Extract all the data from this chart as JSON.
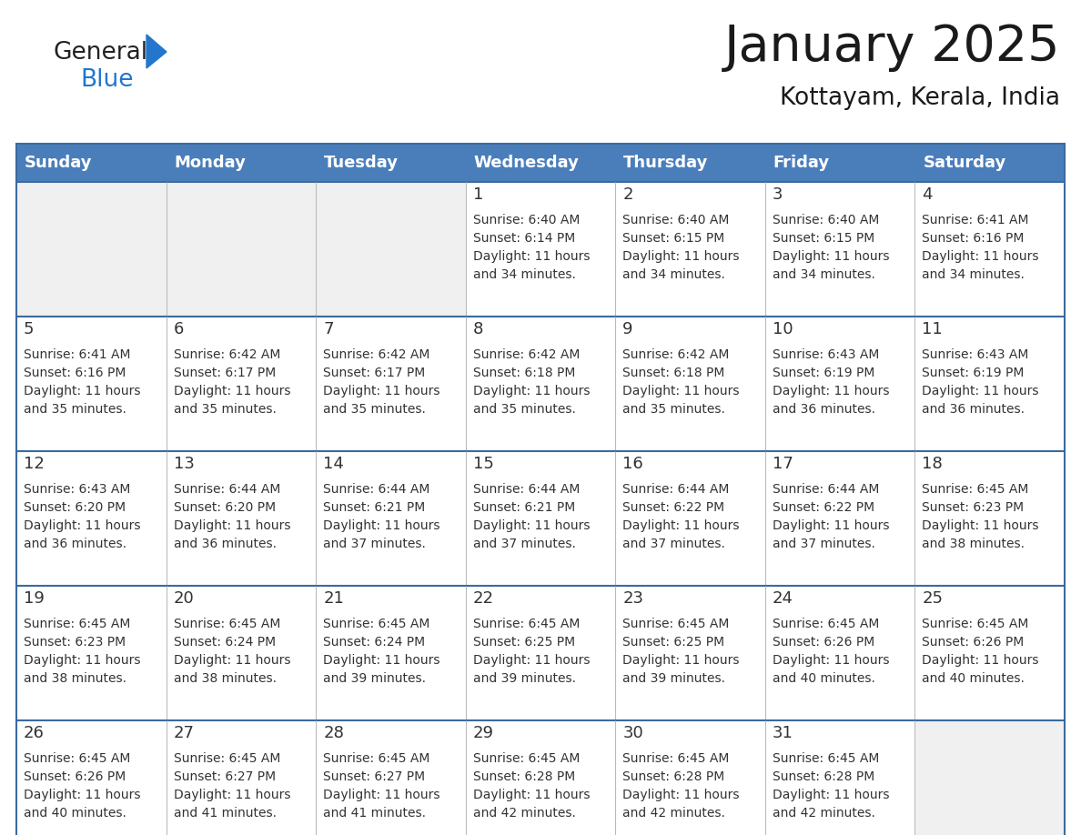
{
  "title": "January 2025",
  "subtitle": "Kottayam, Kerala, India",
  "header_bg": "#4a7ebb",
  "header_text_color": "#FFFFFF",
  "cell_bg_gray": "#f0f0f0",
  "cell_bg_white": "#FFFFFF",
  "border_color": "#3a6aa0",
  "row_border_color": "#3a6aa0",
  "text_color": "#333333",
  "days_of_week": [
    "Sunday",
    "Monday",
    "Tuesday",
    "Wednesday",
    "Thursday",
    "Friday",
    "Saturday"
  ],
  "calendar_data": [
    [
      {
        "day": "",
        "sunrise": "",
        "sunset": "",
        "daylight": ""
      },
      {
        "day": "",
        "sunrise": "",
        "sunset": "",
        "daylight": ""
      },
      {
        "day": "",
        "sunrise": "",
        "sunset": "",
        "daylight": ""
      },
      {
        "day": "1",
        "sunrise": "Sunrise: 6:40 AM",
        "sunset": "Sunset: 6:14 PM",
        "daylight": "Daylight: 11 hours and 34 minutes."
      },
      {
        "day": "2",
        "sunrise": "Sunrise: 6:40 AM",
        "sunset": "Sunset: 6:15 PM",
        "daylight": "Daylight: 11 hours and 34 minutes."
      },
      {
        "day": "3",
        "sunrise": "Sunrise: 6:40 AM",
        "sunset": "Sunset: 6:15 PM",
        "daylight": "Daylight: 11 hours and 34 minutes."
      },
      {
        "day": "4",
        "sunrise": "Sunrise: 6:41 AM",
        "sunset": "Sunset: 6:16 PM",
        "daylight": "Daylight: 11 hours and 34 minutes."
      }
    ],
    [
      {
        "day": "5",
        "sunrise": "Sunrise: 6:41 AM",
        "sunset": "Sunset: 6:16 PM",
        "daylight": "Daylight: 11 hours and 35 minutes."
      },
      {
        "day": "6",
        "sunrise": "Sunrise: 6:42 AM",
        "sunset": "Sunset: 6:17 PM",
        "daylight": "Daylight: 11 hours and 35 minutes."
      },
      {
        "day": "7",
        "sunrise": "Sunrise: 6:42 AM",
        "sunset": "Sunset: 6:17 PM",
        "daylight": "Daylight: 11 hours and 35 minutes."
      },
      {
        "day": "8",
        "sunrise": "Sunrise: 6:42 AM",
        "sunset": "Sunset: 6:18 PM",
        "daylight": "Daylight: 11 hours and 35 minutes."
      },
      {
        "day": "9",
        "sunrise": "Sunrise: 6:42 AM",
        "sunset": "Sunset: 6:18 PM",
        "daylight": "Daylight: 11 hours and 35 minutes."
      },
      {
        "day": "10",
        "sunrise": "Sunrise: 6:43 AM",
        "sunset": "Sunset: 6:19 PM",
        "daylight": "Daylight: 11 hours and 36 minutes."
      },
      {
        "day": "11",
        "sunrise": "Sunrise: 6:43 AM",
        "sunset": "Sunset: 6:19 PM",
        "daylight": "Daylight: 11 hours and 36 minutes."
      }
    ],
    [
      {
        "day": "12",
        "sunrise": "Sunrise: 6:43 AM",
        "sunset": "Sunset: 6:20 PM",
        "daylight": "Daylight: 11 hours and 36 minutes."
      },
      {
        "day": "13",
        "sunrise": "Sunrise: 6:44 AM",
        "sunset": "Sunset: 6:20 PM",
        "daylight": "Daylight: 11 hours and 36 minutes."
      },
      {
        "day": "14",
        "sunrise": "Sunrise: 6:44 AM",
        "sunset": "Sunset: 6:21 PM",
        "daylight": "Daylight: 11 hours and 37 minutes."
      },
      {
        "day": "15",
        "sunrise": "Sunrise: 6:44 AM",
        "sunset": "Sunset: 6:21 PM",
        "daylight": "Daylight: 11 hours and 37 minutes."
      },
      {
        "day": "16",
        "sunrise": "Sunrise: 6:44 AM",
        "sunset": "Sunset: 6:22 PM",
        "daylight": "Daylight: 11 hours and 37 minutes."
      },
      {
        "day": "17",
        "sunrise": "Sunrise: 6:44 AM",
        "sunset": "Sunset: 6:22 PM",
        "daylight": "Daylight: 11 hours and 37 minutes."
      },
      {
        "day": "18",
        "sunrise": "Sunrise: 6:45 AM",
        "sunset": "Sunset: 6:23 PM",
        "daylight": "Daylight: 11 hours and 38 minutes."
      }
    ],
    [
      {
        "day": "19",
        "sunrise": "Sunrise: 6:45 AM",
        "sunset": "Sunset: 6:23 PM",
        "daylight": "Daylight: 11 hours and 38 minutes."
      },
      {
        "day": "20",
        "sunrise": "Sunrise: 6:45 AM",
        "sunset": "Sunset: 6:24 PM",
        "daylight": "Daylight: 11 hours and 38 minutes."
      },
      {
        "day": "21",
        "sunrise": "Sunrise: 6:45 AM",
        "sunset": "Sunset: 6:24 PM",
        "daylight": "Daylight: 11 hours and 39 minutes."
      },
      {
        "day": "22",
        "sunrise": "Sunrise: 6:45 AM",
        "sunset": "Sunset: 6:25 PM",
        "daylight": "Daylight: 11 hours and 39 minutes."
      },
      {
        "day": "23",
        "sunrise": "Sunrise: 6:45 AM",
        "sunset": "Sunset: 6:25 PM",
        "daylight": "Daylight: 11 hours and 39 minutes."
      },
      {
        "day": "24",
        "sunrise": "Sunrise: 6:45 AM",
        "sunset": "Sunset: 6:26 PM",
        "daylight": "Daylight: 11 hours and 40 minutes."
      },
      {
        "day": "25",
        "sunrise": "Sunrise: 6:45 AM",
        "sunset": "Sunset: 6:26 PM",
        "daylight": "Daylight: 11 hours and 40 minutes."
      }
    ],
    [
      {
        "day": "26",
        "sunrise": "Sunrise: 6:45 AM",
        "sunset": "Sunset: 6:26 PM",
        "daylight": "Daylight: 11 hours and 40 minutes."
      },
      {
        "day": "27",
        "sunrise": "Sunrise: 6:45 AM",
        "sunset": "Sunset: 6:27 PM",
        "daylight": "Daylight: 11 hours and 41 minutes."
      },
      {
        "day": "28",
        "sunrise": "Sunrise: 6:45 AM",
        "sunset": "Sunset: 6:27 PM",
        "daylight": "Daylight: 11 hours and 41 minutes."
      },
      {
        "day": "29",
        "sunrise": "Sunrise: 6:45 AM",
        "sunset": "Sunset: 6:28 PM",
        "daylight": "Daylight: 11 hours and 42 minutes."
      },
      {
        "day": "30",
        "sunrise": "Sunrise: 6:45 AM",
        "sunset": "Sunset: 6:28 PM",
        "daylight": "Daylight: 11 hours and 42 minutes."
      },
      {
        "day": "31",
        "sunrise": "Sunrise: 6:45 AM",
        "sunset": "Sunset: 6:28 PM",
        "daylight": "Daylight: 11 hours and 42 minutes."
      },
      {
        "day": "",
        "sunrise": "",
        "sunset": "",
        "daylight": ""
      }
    ]
  ],
  "logo_text_general": "General",
  "logo_text_blue": "Blue",
  "general_color": "#222222",
  "blue_color": "#2277cc",
  "triangle_color": "#2277cc",
  "fig_width": 11.88,
  "fig_height": 9.18,
  "dpi": 100
}
